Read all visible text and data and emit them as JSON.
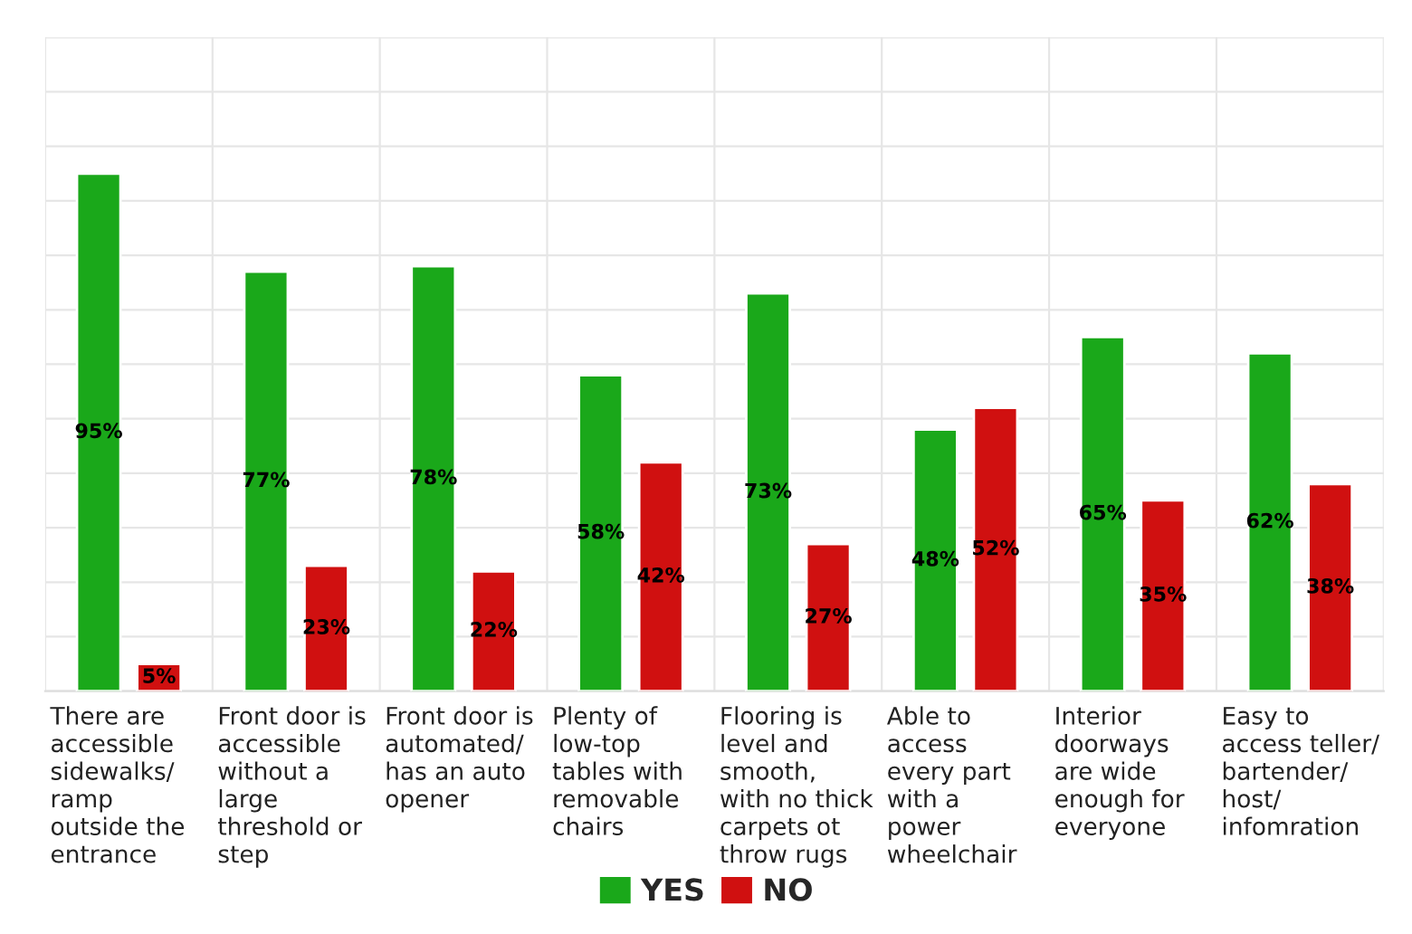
{
  "chart_data": {
    "type": "bar",
    "categories": [
      "There are\naccessible\nsidewalks/\nramp\noutside the\nentrance",
      "Front door is\naccessible\nwithout a\nlarge\nthreshold or\nstep",
      "Front door is\nautomated/\nhas an auto\nopener",
      "Plenty of\nlow-top\ntables with\nremovable\nchairs",
      "Flooring is\nlevel and\nsmooth,\nwith no thick\ncarpets ot\nthrow rugs",
      "Able to\naccess\nevery part\nwith a\npower\nwheelchair",
      "Interior\ndoorways\nare wide\nenough for\neveryone",
      "Easy to\naccess teller/\nbartender/\nhost/\ninfomration"
    ],
    "series": [
      {
        "name": "YES",
        "color": "#1aa81a",
        "values": [
          95,
          77,
          78,
          58,
          73,
          48,
          65,
          62
        ],
        "value_labels": [
          "95%",
          "77%",
          "78%",
          "58%",
          "73%",
          "48%",
          "65%",
          "62%"
        ]
      },
      {
        "name": "NO",
        "color": "#d01010",
        "values": [
          5,
          23,
          22,
          42,
          27,
          52,
          35,
          38
        ],
        "value_labels": [
          "5%",
          "23%",
          "22%",
          "42%",
          "27%",
          "52%",
          "35%",
          "38%"
        ]
      }
    ],
    "ylim": [
      0,
      120
    ],
    "yticks": [
      {
        "value": 0,
        "label": null
      },
      {
        "value": 10,
        "label": null
      },
      {
        "value": 20,
        "label": null
      },
      {
        "value": 30,
        "label": null
      },
      {
        "value": 40,
        "label": null
      },
      {
        "value": 50,
        "label": null
      },
      {
        "value": 60,
        "label": null
      },
      {
        "value": 70,
        "label": null
      },
      {
        "value": 80,
        "label": null
      },
      {
        "value": 90,
        "label": null
      },
      {
        "value": 100,
        "label": null
      },
      {
        "value": 110,
        "label": null
      },
      {
        "value": 120,
        "label": null
      }
    ],
    "tick_labels": "x",
    "grid": true,
    "legend": "bottom"
  }
}
